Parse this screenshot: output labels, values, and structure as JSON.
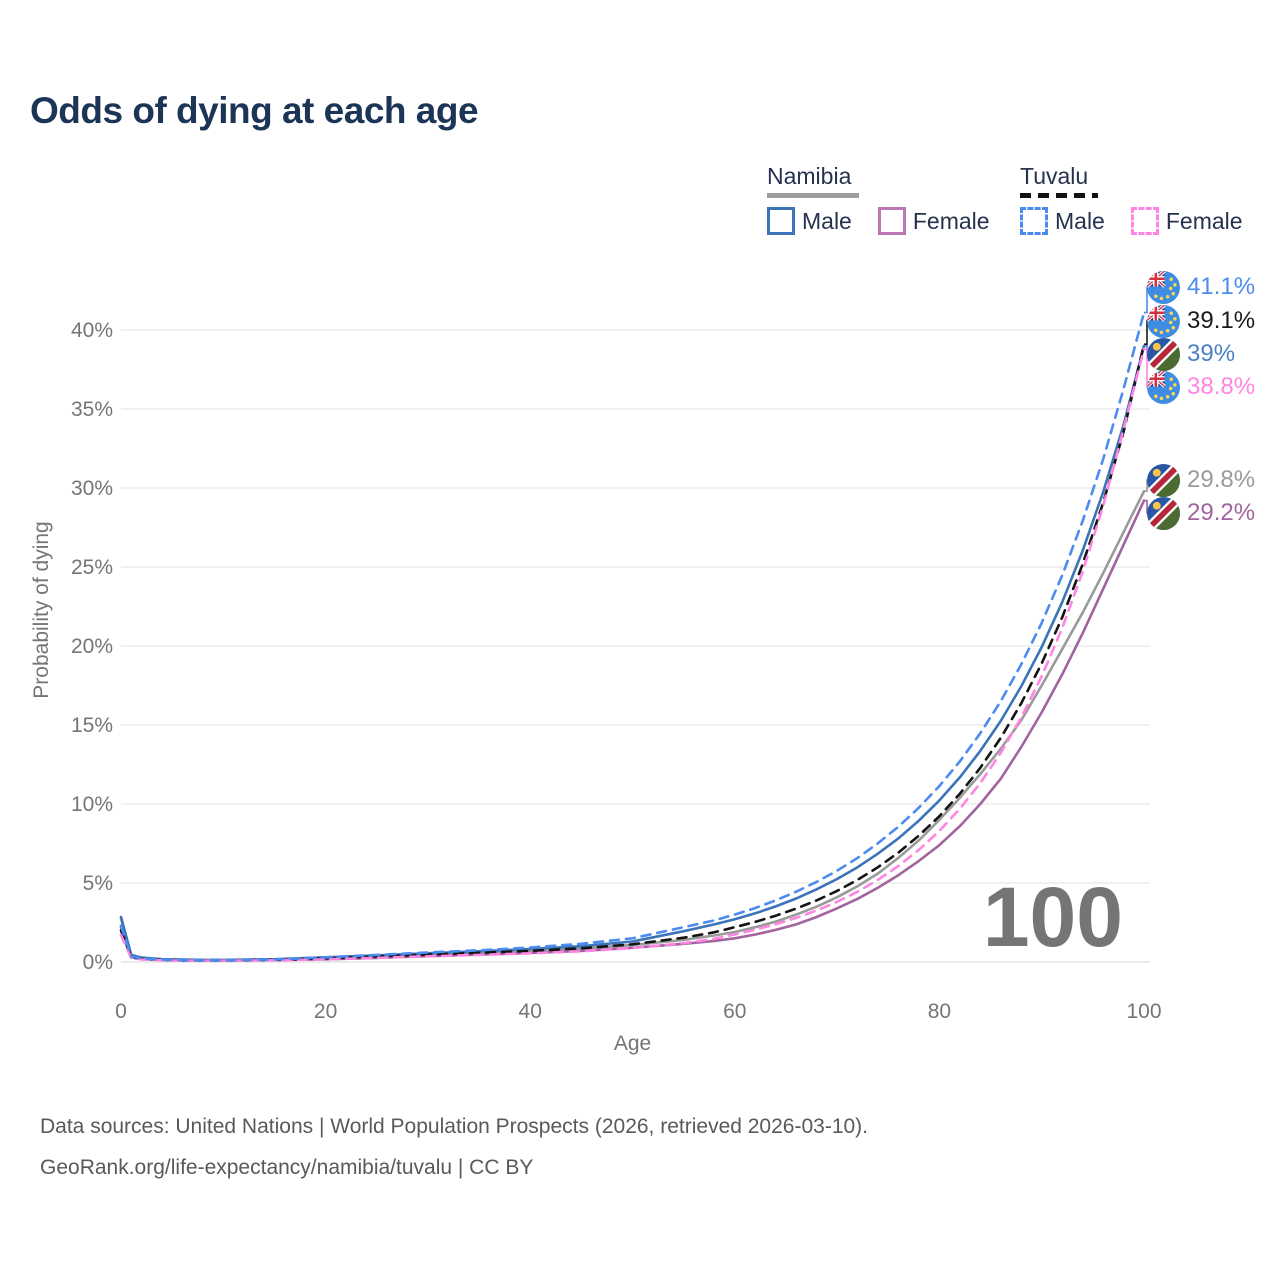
{
  "title": "Odds of dying at each age",
  "legend": {
    "groups": [
      {
        "name": "Namibia",
        "line_style": "solid",
        "underline_color": "#9e9e9e",
        "items": [
          {
            "label": "Male",
            "color": "#3B74B8",
            "dashed": false
          },
          {
            "label": "Female",
            "color": "#BC76B4",
            "dashed": false
          }
        ]
      },
      {
        "name": "Tuvalu",
        "line_style": "dashed",
        "underline_color": "#121212",
        "items": [
          {
            "label": "Male",
            "color": "#4C8BF0",
            "dashed": true
          },
          {
            "label": "Female",
            "color": "#FF85E3",
            "dashed": true
          }
        ]
      }
    ]
  },
  "chart_data": {
    "type": "line",
    "title": "Odds of dying at each age",
    "xlabel": "Age",
    "ylabel": "Probability of dying",
    "xlim": [
      0,
      100
    ],
    "ylim": [
      0,
      43
    ],
    "grid": "horizontal",
    "watermark": "100",
    "x_ticks": [
      {
        "v": 0,
        "label": "0"
      },
      {
        "v": 20,
        "label": "20"
      },
      {
        "v": 40,
        "label": "40"
      },
      {
        "v": 60,
        "label": "60"
      },
      {
        "v": 80,
        "label": "80"
      },
      {
        "v": 100,
        "label": "100"
      }
    ],
    "y_ticks": [
      {
        "v": 0,
        "label": "0%"
      },
      {
        "v": 5,
        "label": "5%"
      },
      {
        "v": 10,
        "label": "10%"
      },
      {
        "v": 15,
        "label": "15%"
      },
      {
        "v": 20,
        "label": "20%"
      },
      {
        "v": 25,
        "label": "25%"
      },
      {
        "v": 30,
        "label": "30%"
      },
      {
        "v": 35,
        "label": "35%"
      },
      {
        "v": 40,
        "label": "40%"
      }
    ],
    "series": [
      {
        "id": "namibia-all",
        "name": "Namibia",
        "color": "#9A9A9A",
        "dashed": false,
        "end_value_pct": 29.8,
        "points": [
          [
            0,
            2.75
          ],
          [
            1,
            0.42
          ],
          [
            2,
            0.26
          ],
          [
            4,
            0.17
          ],
          [
            6,
            0.14
          ],
          [
            8,
            0.13
          ],
          [
            10,
            0.12
          ],
          [
            15,
            0.16
          ],
          [
            20,
            0.25
          ],
          [
            25,
            0.36
          ],
          [
            30,
            0.48
          ],
          [
            35,
            0.59
          ],
          [
            40,
            0.7
          ],
          [
            45,
            0.85
          ],
          [
            50,
            1.08
          ],
          [
            55,
            1.4
          ],
          [
            58,
            1.68
          ],
          [
            60,
            1.9
          ],
          [
            62,
            2.2
          ],
          [
            64,
            2.56
          ],
          [
            66,
            3.0
          ],
          [
            68,
            3.5
          ],
          [
            70,
            4.1
          ],
          [
            72,
            4.8
          ],
          [
            74,
            5.6
          ],
          [
            76,
            6.6
          ],
          [
            78,
            7.7
          ],
          [
            80,
            9.0
          ],
          [
            82,
            10.4
          ],
          [
            84,
            11.9
          ],
          [
            86,
            13.5
          ],
          [
            88,
            15.3
          ],
          [
            90,
            17.5
          ],
          [
            92,
            19.8
          ],
          [
            94,
            22.1
          ],
          [
            96,
            24.6
          ],
          [
            98,
            27.2
          ],
          [
            100,
            29.8
          ]
        ]
      },
      {
        "id": "namibia-female",
        "name": "Namibia Female",
        "color": "#A2639E",
        "dashed": false,
        "end_value_pct": 29.2,
        "points": [
          [
            0,
            2.2
          ],
          [
            1,
            0.32
          ],
          [
            2,
            0.2
          ],
          [
            4,
            0.13
          ],
          [
            6,
            0.11
          ],
          [
            8,
            0.1
          ],
          [
            10,
            0.09
          ],
          [
            15,
            0.12
          ],
          [
            20,
            0.17
          ],
          [
            25,
            0.26
          ],
          [
            30,
            0.37
          ],
          [
            35,
            0.47
          ],
          [
            40,
            0.57
          ],
          [
            45,
            0.7
          ],
          [
            50,
            0.9
          ],
          [
            55,
            1.15
          ],
          [
            58,
            1.33
          ],
          [
            60,
            1.5
          ],
          [
            62,
            1.74
          ],
          [
            64,
            2.03
          ],
          [
            66,
            2.38
          ],
          [
            68,
            2.85
          ],
          [
            70,
            3.4
          ],
          [
            72,
            4.0
          ],
          [
            74,
            4.7
          ],
          [
            76,
            5.5
          ],
          [
            78,
            6.4
          ],
          [
            80,
            7.4
          ],
          [
            82,
            8.6
          ],
          [
            84,
            10.0
          ],
          [
            86,
            11.6
          ],
          [
            88,
            13.6
          ],
          [
            90,
            15.8
          ],
          [
            92,
            18.2
          ],
          [
            94,
            20.8
          ],
          [
            96,
            23.6
          ],
          [
            98,
            26.4
          ],
          [
            100,
            29.2
          ]
        ]
      },
      {
        "id": "namibia-male",
        "name": "Namibia Male",
        "color": "#3B74B8",
        "dashed": false,
        "end_value_pct": 39,
        "points": [
          [
            0,
            2.85
          ],
          [
            1,
            0.45
          ],
          [
            2,
            0.28
          ],
          [
            4,
            0.18
          ],
          [
            6,
            0.15
          ],
          [
            8,
            0.13
          ],
          [
            10,
            0.13
          ],
          [
            15,
            0.18
          ],
          [
            20,
            0.3
          ],
          [
            25,
            0.42
          ],
          [
            30,
            0.55
          ],
          [
            35,
            0.68
          ],
          [
            40,
            0.82
          ],
          [
            45,
            1.0
          ],
          [
            50,
            1.3
          ],
          [
            55,
            1.95
          ],
          [
            58,
            2.38
          ],
          [
            60,
            2.7
          ],
          [
            62,
            3.08
          ],
          [
            64,
            3.52
          ],
          [
            66,
            4.02
          ],
          [
            68,
            4.6
          ],
          [
            70,
            5.25
          ],
          [
            72,
            6.0
          ],
          [
            74,
            6.86
          ],
          [
            76,
            7.83
          ],
          [
            78,
            8.95
          ],
          [
            80,
            10.23
          ],
          [
            82,
            11.69
          ],
          [
            84,
            13.36
          ],
          [
            86,
            15.26
          ],
          [
            88,
            17.44
          ],
          [
            90,
            19.93
          ],
          [
            92,
            22.77
          ],
          [
            94,
            26.02
          ],
          [
            96,
            29.73
          ],
          [
            98,
            33.97
          ],
          [
            100,
            39.0
          ]
        ]
      },
      {
        "id": "tuvalu-all",
        "name": "Tuvalu",
        "color": "#141414",
        "dashed": true,
        "end_value_pct": 39.1,
        "points": [
          [
            0,
            2.0
          ],
          [
            1,
            0.3
          ],
          [
            2,
            0.19
          ],
          [
            4,
            0.13
          ],
          [
            6,
            0.1
          ],
          [
            8,
            0.1
          ],
          [
            10,
            0.1
          ],
          [
            15,
            0.13
          ],
          [
            20,
            0.23
          ],
          [
            25,
            0.35
          ],
          [
            30,
            0.47
          ],
          [
            35,
            0.58
          ],
          [
            40,
            0.7
          ],
          [
            45,
            0.87
          ],
          [
            50,
            1.12
          ],
          [
            55,
            1.54
          ],
          [
            58,
            1.88
          ],
          [
            60,
            2.2
          ],
          [
            62,
            2.54
          ],
          [
            64,
            2.93
          ],
          [
            66,
            3.38
          ],
          [
            68,
            3.9
          ],
          [
            70,
            4.5
          ],
          [
            72,
            5.2
          ],
          [
            74,
            6.0
          ],
          [
            76,
            6.93
          ],
          [
            78,
            8.0
          ],
          [
            80,
            9.23
          ],
          [
            82,
            10.65
          ],
          [
            84,
            12.29
          ],
          [
            86,
            14.19
          ],
          [
            88,
            16.37
          ],
          [
            90,
            18.9
          ],
          [
            92,
            21.81
          ],
          [
            94,
            25.17
          ],
          [
            96,
            29.05
          ],
          [
            98,
            33.53
          ],
          [
            100,
            39.1
          ]
        ]
      },
      {
        "id": "tuvalu-female",
        "name": "Tuvalu Female",
        "color": "#FF85E3",
        "dashed": true,
        "end_value_pct": 38.8,
        "points": [
          [
            0,
            1.7
          ],
          [
            1,
            0.26
          ],
          [
            2,
            0.16
          ],
          [
            4,
            0.11
          ],
          [
            6,
            0.09
          ],
          [
            8,
            0.09
          ],
          [
            10,
            0.09
          ],
          [
            15,
            0.11
          ],
          [
            20,
            0.17
          ],
          [
            25,
            0.26
          ],
          [
            30,
            0.36
          ],
          [
            35,
            0.45
          ],
          [
            40,
            0.55
          ],
          [
            45,
            0.68
          ],
          [
            50,
            0.88
          ],
          [
            55,
            1.19
          ],
          [
            58,
            1.47
          ],
          [
            60,
            1.75
          ],
          [
            62,
            2.04
          ],
          [
            64,
            2.39
          ],
          [
            66,
            2.79
          ],
          [
            68,
            3.26
          ],
          [
            70,
            3.81
          ],
          [
            72,
            4.45
          ],
          [
            74,
            5.2
          ],
          [
            76,
            6.08
          ],
          [
            78,
            7.1
          ],
          [
            80,
            8.3
          ],
          [
            82,
            9.7
          ],
          [
            84,
            11.33
          ],
          [
            86,
            13.24
          ],
          [
            88,
            15.47
          ],
          [
            90,
            18.08
          ],
          [
            92,
            21.13
          ],
          [
            94,
            24.69
          ],
          [
            96,
            28.85
          ],
          [
            98,
            33.71
          ],
          [
            100,
            38.8
          ]
        ]
      },
      {
        "id": "tuvalu-male",
        "name": "Tuvalu Male",
        "color": "#4C8BF0",
        "dashed": true,
        "end_value_pct": 41.1,
        "points": [
          [
            0,
            2.3
          ],
          [
            1,
            0.35
          ],
          [
            2,
            0.22
          ],
          [
            4,
            0.15
          ],
          [
            6,
            0.12
          ],
          [
            8,
            0.11
          ],
          [
            10,
            0.11
          ],
          [
            15,
            0.16
          ],
          [
            20,
            0.3
          ],
          [
            25,
            0.45
          ],
          [
            30,
            0.6
          ],
          [
            35,
            0.74
          ],
          [
            40,
            0.92
          ],
          [
            45,
            1.15
          ],
          [
            50,
            1.5
          ],
          [
            55,
            2.2
          ],
          [
            58,
            2.63
          ],
          [
            60,
            3.0
          ],
          [
            62,
            3.42
          ],
          [
            64,
            3.9
          ],
          [
            66,
            4.45
          ],
          [
            68,
            5.07
          ],
          [
            70,
            5.78
          ],
          [
            72,
            6.59
          ],
          [
            74,
            7.52
          ],
          [
            76,
            8.57
          ],
          [
            78,
            9.77
          ],
          [
            80,
            11.14
          ],
          [
            82,
            12.7
          ],
          [
            84,
            14.48
          ],
          [
            86,
            16.51
          ],
          [
            88,
            18.83
          ],
          [
            90,
            21.46
          ],
          [
            92,
            24.47
          ],
          [
            94,
            27.9
          ],
          [
            96,
            31.81
          ],
          [
            98,
            36.26
          ],
          [
            100,
            41.1
          ]
        ]
      }
    ],
    "end_labels": [
      {
        "text": "41.1%",
        "color": "#4C8BF0",
        "flag": "tuvalu",
        "series": "tuvalu-male"
      },
      {
        "text": "39.1%",
        "color": "#1a1a1a",
        "flag": "tuvalu",
        "series": "tuvalu-all"
      },
      {
        "text": "39%",
        "color": "#4B80C8",
        "flag": "namibia",
        "series": "namibia-male"
      },
      {
        "text": "38.8%",
        "color": "#FF85E3",
        "flag": "tuvalu",
        "series": "tuvalu-female"
      },
      {
        "text": "29.8%",
        "color": "#9A9A9A",
        "flag": "namibia",
        "series": "namibia-all"
      },
      {
        "text": "29.2%",
        "color": "#A2639E",
        "flag": "namibia",
        "series": "namibia-female"
      }
    ]
  },
  "footer": {
    "line1": "Data sources: United Nations | World Population Prospects (2026, retrieved 2026-03-10).",
    "line2": "GeoRank.org/life-expectancy/namibia/tuvalu | CC BY"
  }
}
